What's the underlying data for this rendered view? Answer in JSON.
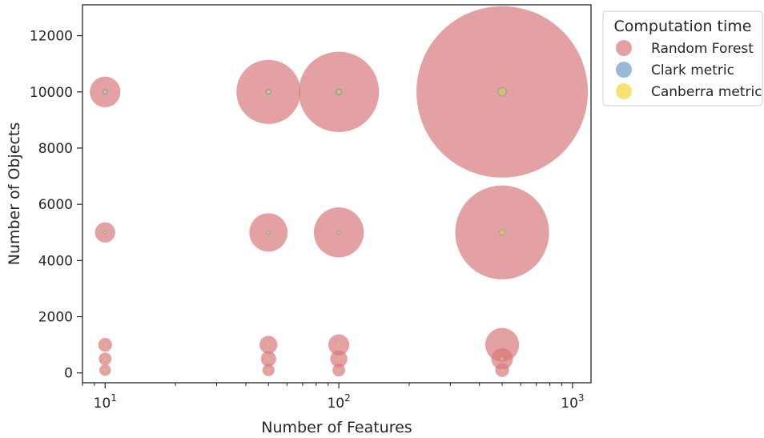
{
  "chart_data": {
    "type": "scatter",
    "title": "",
    "xlabel": "Number of Features",
    "ylabel": "Number of Objects",
    "x_scale": "log",
    "xlim": [
      8,
      1200
    ],
    "ylim": [
      -350,
      13100
    ],
    "x_ticks": [
      {
        "value": 10,
        "base": "10",
        "exp": "1"
      },
      {
        "value": 100,
        "base": "10",
        "exp": "2"
      },
      {
        "value": 1000,
        "base": "10",
        "exp": "3"
      }
    ],
    "y_ticks": [
      0,
      2000,
      4000,
      6000,
      8000,
      10000,
      12000
    ],
    "grid": false,
    "legend": {
      "title": "Computation time",
      "placement": "outside-top-right"
    },
    "colors": {
      "Random Forest": "#d9797d",
      "Clark metric": "#6e9bcb",
      "Canberra metric": "#f2d535"
    },
    "series": [
      {
        "name": "Random Forest",
        "points": [
          {
            "x": 10,
            "y": 100,
            "size": 0.45
          },
          {
            "x": 10,
            "y": 500,
            "size": 0.55
          },
          {
            "x": 10,
            "y": 1000,
            "size": 0.65
          },
          {
            "x": 10,
            "y": 5000,
            "size": 1.4
          },
          {
            "x": 10,
            "y": 10000,
            "size": 3.2
          },
          {
            "x": 50,
            "y": 100,
            "size": 0.5
          },
          {
            "x": 50,
            "y": 500,
            "size": 0.8
          },
          {
            "x": 50,
            "y": 1000,
            "size": 1.1
          },
          {
            "x": 50,
            "y": 5000,
            "size": 5.0
          },
          {
            "x": 50,
            "y": 10000,
            "size": 14.0
          },
          {
            "x": 100,
            "y": 100,
            "size": 0.55
          },
          {
            "x": 100,
            "y": 500,
            "size": 1.0
          },
          {
            "x": 100,
            "y": 1000,
            "size": 1.5
          },
          {
            "x": 100,
            "y": 5000,
            "size": 8.5
          },
          {
            "x": 100,
            "y": 10000,
            "size": 22.0
          },
          {
            "x": 500,
            "y": 100,
            "size": 0.65
          },
          {
            "x": 500,
            "y": 500,
            "size": 1.6
          },
          {
            "x": 500,
            "y": 1000,
            "size": 3.9
          },
          {
            "x": 500,
            "y": 5000,
            "size": 30.0
          },
          {
            "x": 500,
            "y": 10000,
            "size": 100.0
          }
        ]
      },
      {
        "name": "Clark metric",
        "points": [
          {
            "x": 10,
            "y": 100,
            "size": 0.003
          },
          {
            "x": 10,
            "y": 500,
            "size": 0.005
          },
          {
            "x": 10,
            "y": 1000,
            "size": 0.008
          },
          {
            "x": 10,
            "y": 5000,
            "size": 0.05
          },
          {
            "x": 10,
            "y": 10000,
            "size": 0.11
          },
          {
            "x": 50,
            "y": 100,
            "size": 0.003
          },
          {
            "x": 50,
            "y": 500,
            "size": 0.006
          },
          {
            "x": 50,
            "y": 1000,
            "size": 0.012
          },
          {
            "x": 50,
            "y": 5000,
            "size": 0.06
          },
          {
            "x": 50,
            "y": 10000,
            "size": 0.13
          },
          {
            "x": 100,
            "y": 100,
            "size": 0.004
          },
          {
            "x": 100,
            "y": 500,
            "size": 0.008
          },
          {
            "x": 100,
            "y": 1000,
            "size": 0.015
          },
          {
            "x": 100,
            "y": 5000,
            "size": 0.07
          },
          {
            "x": 100,
            "y": 10000,
            "size": 0.16
          },
          {
            "x": 500,
            "y": 100,
            "size": 0.006
          },
          {
            "x": 500,
            "y": 500,
            "size": 0.015
          },
          {
            "x": 500,
            "y": 1000,
            "size": 0.03
          },
          {
            "x": 500,
            "y": 5000,
            "size": 0.14
          },
          {
            "x": 500,
            "y": 10000,
            "size": 0.3
          }
        ]
      },
      {
        "name": "Canberra metric",
        "points": [
          {
            "x": 10,
            "y": 100,
            "size": 0.002
          },
          {
            "x": 10,
            "y": 500,
            "size": 0.003
          },
          {
            "x": 10,
            "y": 1000,
            "size": 0.005
          },
          {
            "x": 10,
            "y": 5000,
            "size": 0.02
          },
          {
            "x": 10,
            "y": 10000,
            "size": 0.04
          },
          {
            "x": 50,
            "y": 100,
            "size": 0.002
          },
          {
            "x": 50,
            "y": 500,
            "size": 0.004
          },
          {
            "x": 50,
            "y": 1000,
            "size": 0.007
          },
          {
            "x": 50,
            "y": 5000,
            "size": 0.025
          },
          {
            "x": 50,
            "y": 10000,
            "size": 0.05
          },
          {
            "x": 100,
            "y": 100,
            "size": 0.002
          },
          {
            "x": 100,
            "y": 500,
            "size": 0.005
          },
          {
            "x": 100,
            "y": 1000,
            "size": 0.008
          },
          {
            "x": 100,
            "y": 5000,
            "size": 0.03
          },
          {
            "x": 100,
            "y": 10000,
            "size": 0.065
          },
          {
            "x": 500,
            "y": 100,
            "size": 0.003
          },
          {
            "x": 500,
            "y": 500,
            "size": 0.008
          },
          {
            "x": 500,
            "y": 1000,
            "size": 0.015
          },
          {
            "x": 500,
            "y": 5000,
            "size": 0.09
          },
          {
            "x": 500,
            "y": 10000,
            "size": 0.19
          }
        ]
      }
    ]
  }
}
